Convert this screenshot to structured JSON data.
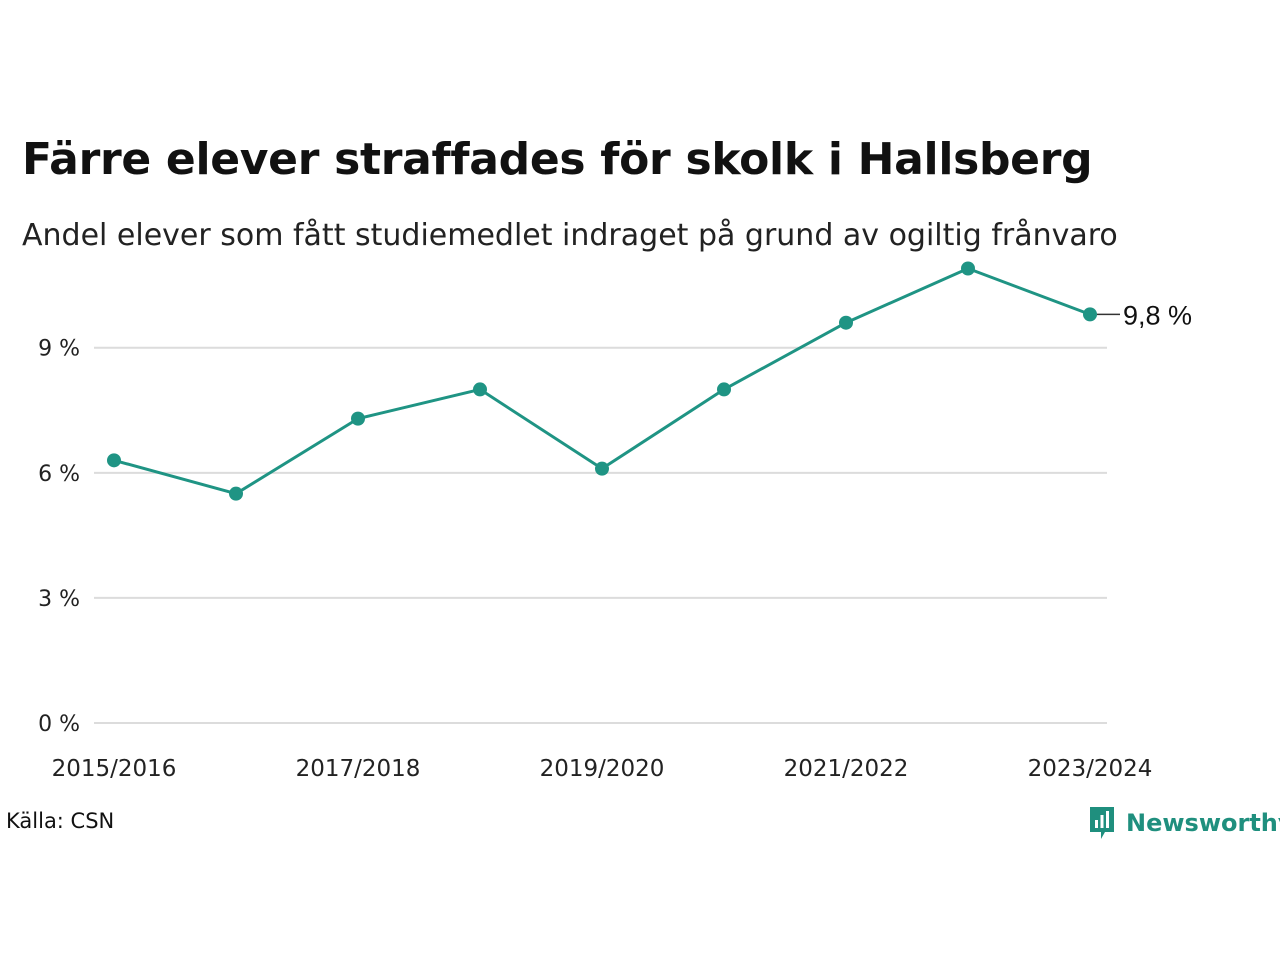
{
  "title": "Färre elever straffades för skolk i Hallsberg",
  "subtitle": "Andel elever som fått studiemedlet indraget på grund av ogiltig frånvaro",
  "source": "Källa: CSN",
  "brand": {
    "name": "Newsworthy",
    "color": "#1f8f7e"
  },
  "chart_data": {
    "type": "line",
    "title": "Färre elever straffades för skolk i Hallsberg",
    "subtitle": "Andel elever som fått studiemedlet indraget på grund av ogiltig frånvaro",
    "categories": [
      "2015/2016",
      "2016/2017",
      "2017/2018",
      "2018/2019",
      "2019/2020",
      "2020/2021",
      "2021/2022",
      "2022/2023",
      "2023/2024"
    ],
    "x_tick_labels": [
      "2015/2016",
      "2017/2018",
      "2019/2020",
      "2021/2022",
      "2023/2024"
    ],
    "series": [
      {
        "values": [
          6.3,
          5.5,
          7.3,
          8.0,
          6.1,
          8.0,
          9.6,
          10.9,
          9.8
        ],
        "color": "#1f9484"
      }
    ],
    "y_ticks": [
      0,
      3,
      6,
      9
    ],
    "y_tick_labels": [
      "0 %",
      "3 %",
      "6 %",
      "9 %"
    ],
    "ylim": [
      0,
      11.2
    ],
    "grid": true,
    "end_label": "9,8 %",
    "xlabel": "",
    "ylabel": ""
  }
}
